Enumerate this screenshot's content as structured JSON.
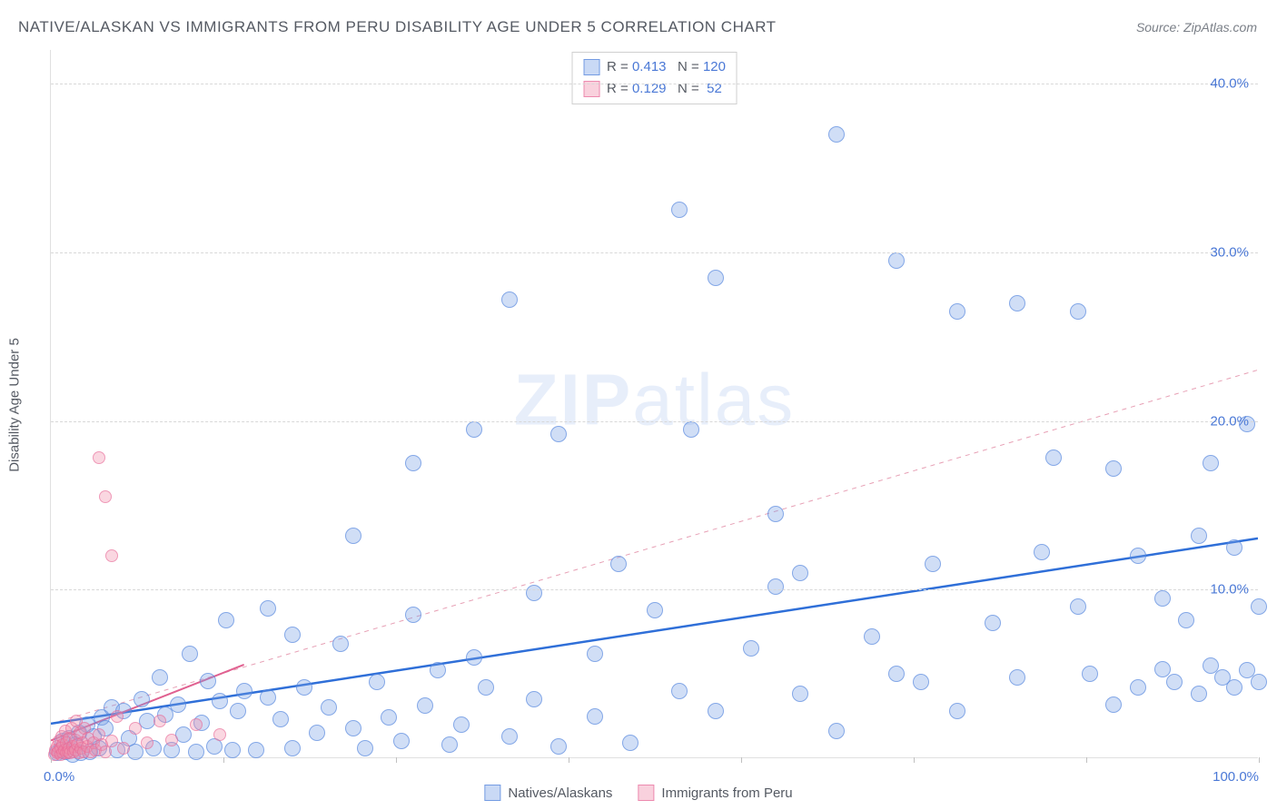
{
  "title": "NATIVE/ALASKAN VS IMMIGRANTS FROM PERU DISABILITY AGE UNDER 5 CORRELATION CHART",
  "source": "Source: ZipAtlas.com",
  "y_axis_label": "Disability Age Under 5",
  "watermark": "ZIPatlas",
  "chart": {
    "type": "scatter",
    "xlim": [
      0,
      100
    ],
    "ylim": [
      0,
      42
    ],
    "y_ticks": [
      10,
      20,
      30,
      40
    ],
    "y_tick_labels": [
      "10.0%",
      "20.0%",
      "30.0%",
      "40.0%"
    ],
    "x_tick_positions": [
      0,
      14.29,
      28.57,
      42.86,
      57.14,
      71.43,
      85.71,
      100
    ],
    "x_start_label": "0.0%",
    "x_end_label": "100.0%",
    "grid_color": "#d8d8d8",
    "background_color": "#ffffff",
    "marker_radius_blue": 9,
    "marker_radius_pink": 7,
    "series": [
      {
        "name": "Natives/Alaskans",
        "color_fill": "rgba(120,160,230,0.35)",
        "color_stroke": "rgba(80,130,220,0.6)",
        "correlation_r": "0.413",
        "correlation_n": "120",
        "trend": {
          "x1": 0,
          "y1": 2.0,
          "x2": 100,
          "y2": 13.0,
          "color": "#2f6fd8",
          "width": 2.5,
          "dash": "none"
        },
        "trend_extrapolate": {
          "x1": 0,
          "y1": 2.0,
          "x2": 100,
          "y2": 23.0,
          "color": "#e7a0b5",
          "width": 1,
          "dash": "5,5"
        },
        "points": [
          [
            0.5,
            0.3
          ],
          [
            0.8,
            0.5
          ],
          [
            1,
            1
          ],
          [
            1.2,
            0.4
          ],
          [
            1.5,
            1.2
          ],
          [
            1.8,
            0.2
          ],
          [
            2,
            0.8
          ],
          [
            2.3,
            1.5
          ],
          [
            2.5,
            0.3
          ],
          [
            3,
            2
          ],
          [
            3.2,
            0.4
          ],
          [
            3.5,
            1.3
          ],
          [
            4,
            0.6
          ],
          [
            4.2,
            2.4
          ],
          [
            4.5,
            1.8
          ],
          [
            5,
            3
          ],
          [
            5.5,
            0.5
          ],
          [
            6,
            2.8
          ],
          [
            6.5,
            1.2
          ],
          [
            7,
            0.4
          ],
          [
            7.5,
            3.5
          ],
          [
            8,
            2.2
          ],
          [
            8.5,
            0.6
          ],
          [
            9,
            4.8
          ],
          [
            9.5,
            2.6
          ],
          [
            10,
            0.5
          ],
          [
            10.5,
            3.2
          ],
          [
            11,
            1.4
          ],
          [
            11.5,
            6.2
          ],
          [
            12,
            0.4
          ],
          [
            12.5,
            2.1
          ],
          [
            13,
            4.6
          ],
          [
            13.5,
            0.7
          ],
          [
            14,
            3.4
          ],
          [
            14.5,
            8.2
          ],
          [
            15,
            0.5
          ],
          [
            15.5,
            2.8
          ],
          [
            16,
            4
          ],
          [
            17,
            0.5
          ],
          [
            18,
            3.6
          ],
          [
            18,
            8.9
          ],
          [
            19,
            2.3
          ],
          [
            20,
            0.6
          ],
          [
            20,
            7.3
          ],
          [
            21,
            4.2
          ],
          [
            22,
            1.5
          ],
          [
            23,
            3.0
          ],
          [
            24,
            6.8
          ],
          [
            25,
            1.8
          ],
          [
            25,
            13.2
          ],
          [
            26,
            0.6
          ],
          [
            27,
            4.5
          ],
          [
            28,
            2.4
          ],
          [
            29,
            1.0
          ],
          [
            30,
            8.5
          ],
          [
            30,
            17.5
          ],
          [
            31,
            3.1
          ],
          [
            32,
            5.2
          ],
          [
            33,
            0.8
          ],
          [
            34,
            2.0
          ],
          [
            35,
            19.5
          ],
          [
            35,
            6.0
          ],
          [
            36,
            4.2
          ],
          [
            38,
            1.3
          ],
          [
            38,
            27.2
          ],
          [
            40,
            9.8
          ],
          [
            40,
            3.5
          ],
          [
            42,
            0.7
          ],
          [
            42,
            19.2
          ],
          [
            45,
            6.2
          ],
          [
            45,
            2.5
          ],
          [
            47,
            11.5
          ],
          [
            48,
            0.9
          ],
          [
            50,
            8.8
          ],
          [
            52,
            4.0
          ],
          [
            52,
            32.5
          ],
          [
            53,
            19.5
          ],
          [
            55,
            2.8
          ],
          [
            55,
            28.5
          ],
          [
            58,
            6.5
          ],
          [
            60,
            10.2
          ],
          [
            60,
            14.5
          ],
          [
            62,
            3.8
          ],
          [
            62,
            11.0
          ],
          [
            65,
            37.0
          ],
          [
            65,
            1.6
          ],
          [
            68,
            7.2
          ],
          [
            70,
            5.0
          ],
          [
            70,
            29.5
          ],
          [
            72,
            4.5
          ],
          [
            73,
            11.5
          ],
          [
            75,
            2.8
          ],
          [
            75,
            26.5
          ],
          [
            78,
            8.0
          ],
          [
            80,
            27.0
          ],
          [
            80,
            4.8
          ],
          [
            82,
            12.2
          ],
          [
            83,
            17.8
          ],
          [
            85,
            9.0
          ],
          [
            85,
            26.5
          ],
          [
            86,
            5.0
          ],
          [
            88,
            3.2
          ],
          [
            88,
            17.2
          ],
          [
            90,
            4.2
          ],
          [
            90,
            12.0
          ],
          [
            92,
            5.3
          ],
          [
            92,
            9.5
          ],
          [
            93,
            4.5
          ],
          [
            94,
            8.2
          ],
          [
            95,
            3.8
          ],
          [
            95,
            13.2
          ],
          [
            96,
            5.5
          ],
          [
            96,
            17.5
          ],
          [
            97,
            4.8
          ],
          [
            98,
            4.2
          ],
          [
            98,
            12.5
          ],
          [
            99,
            5.2
          ],
          [
            99,
            19.8
          ],
          [
            100,
            4.5
          ],
          [
            100,
            9.0
          ]
        ]
      },
      {
        "name": "Immigrants from Peru",
        "color_fill": "rgba(240,140,170,0.35)",
        "color_stroke": "rgba(230,100,150,0.55)",
        "correlation_r": "0.129",
        "correlation_n": "52",
        "trend": {
          "x1": 0,
          "y1": 1.0,
          "x2": 16,
          "y2": 5.5,
          "color": "#e06090",
          "width": 2,
          "dash": "none"
        },
        "points": [
          [
            0.3,
            0.2
          ],
          [
            0.4,
            0.5
          ],
          [
            0.5,
            0.3
          ],
          [
            0.5,
            0.7
          ],
          [
            0.6,
            0.4
          ],
          [
            0.7,
            1.0
          ],
          [
            0.8,
            0.2
          ],
          [
            0.8,
            0.6
          ],
          [
            0.9,
            1.3
          ],
          [
            1.0,
            0.3
          ],
          [
            1.0,
            0.8
          ],
          [
            1.1,
            0.5
          ],
          [
            1.2,
            1.6
          ],
          [
            1.3,
            0.3
          ],
          [
            1.3,
            0.9
          ],
          [
            1.4,
            0.4
          ],
          [
            1.5,
            1.2
          ],
          [
            1.5,
            0.6
          ],
          [
            1.6,
            0.3
          ],
          [
            1.7,
            1.8
          ],
          [
            1.8,
            0.7
          ],
          [
            1.9,
            0.4
          ],
          [
            2.0,
            1.1
          ],
          [
            2.0,
            0.5
          ],
          [
            2.1,
            2.2
          ],
          [
            2.2,
            0.8
          ],
          [
            2.3,
            0.3
          ],
          [
            2.4,
            1.5
          ],
          [
            2.5,
            0.6
          ],
          [
            2.6,
            0.9
          ],
          [
            2.7,
            0.4
          ],
          [
            2.8,
            1.8
          ],
          [
            3.0,
            0.7
          ],
          [
            3.1,
            1.2
          ],
          [
            3.3,
            0.4
          ],
          [
            3.5,
            0.9
          ],
          [
            3.7,
            0.5
          ],
          [
            4.0,
            1.4
          ],
          [
            4.0,
            17.8
          ],
          [
            4.2,
            0.8
          ],
          [
            4.5,
            0.4
          ],
          [
            4.5,
            15.5
          ],
          [
            5.0,
            1.0
          ],
          [
            5.0,
            12.0
          ],
          [
            5.5,
            2.5
          ],
          [
            6.0,
            0.6
          ],
          [
            7.0,
            1.8
          ],
          [
            8.0,
            0.9
          ],
          [
            9.0,
            2.2
          ],
          [
            10.0,
            1.1
          ],
          [
            12.0,
            2.0
          ],
          [
            14.0,
            1.4
          ]
        ]
      }
    ]
  },
  "bottom_legend": [
    {
      "label": "Natives/Alaskans",
      "swatch": "blue"
    },
    {
      "label": "Immigrants from Peru",
      "swatch": "pink"
    }
  ]
}
